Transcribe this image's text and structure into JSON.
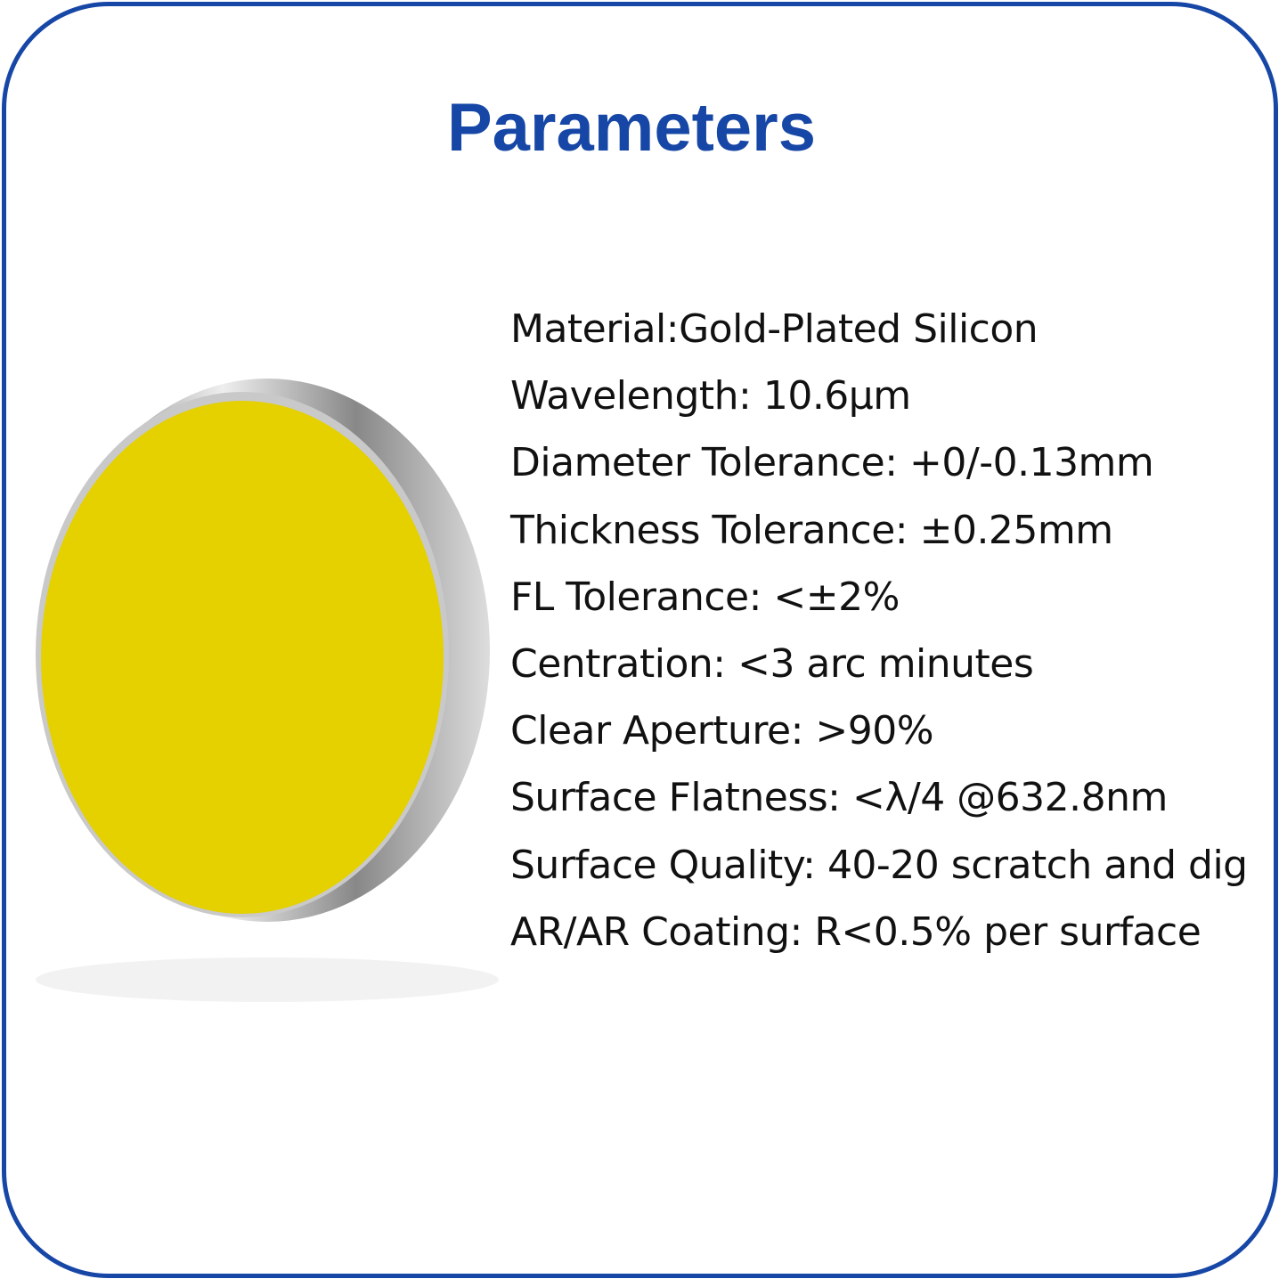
{
  "header": {
    "title": "Parameters"
  },
  "specs": [
    "Material:Gold-Plated Silicon",
    "Wavelength: 10.6μm",
    "Diameter Tolerance: +0/-0.13mm",
    "Thickness Tolerance: ±0.25mm",
    "FL Tolerance: <±2%",
    "Centration: <3 arc minutes",
    "Clear Aperture: >90%",
    "Surface Flatness: <λ/4 @632.8nm",
    "Surface Quality: 40-20 scratch and dig",
    "AR/AR Coating: R<0.5% per surface"
  ]
}
